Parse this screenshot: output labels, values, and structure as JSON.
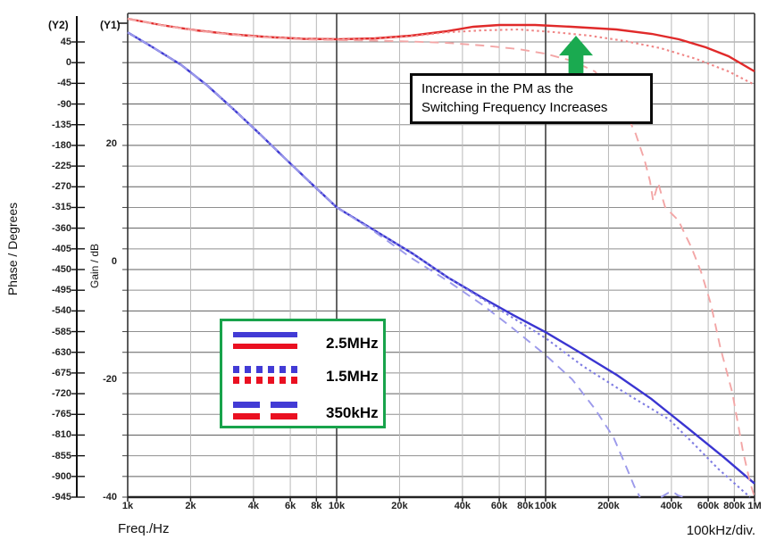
{
  "axes": {
    "phase": {
      "tag": "(Y2)",
      "title": "Phase / Degrees",
      "ticks": [
        45,
        0,
        -45,
        -90,
        -135,
        -180,
        -225,
        -270,
        -315,
        -360,
        -405,
        -450,
        -495,
        -540,
        -585,
        -630,
        -675,
        -720,
        -765,
        -810,
        -855,
        -900,
        -945
      ]
    },
    "gain": {
      "tag": "(Y1)",
      "title": "Gain / dB",
      "ticks": [
        20,
        0,
        -20,
        -40
      ]
    },
    "freq": {
      "title": "Freq./Hz",
      "div_note": "100kHz/div.",
      "tick_labels": [
        "1k",
        "2k",
        "4k",
        "6k",
        "8k",
        "10k",
        "20k",
        "40k",
        "60k",
        "80k",
        "100k",
        "200k",
        "400k",
        "600k",
        "800k",
        "1M"
      ],
      "tick_values": [
        1000,
        2000,
        4000,
        6000,
        8000,
        10000,
        20000,
        40000,
        60000,
        80000,
        100000,
        200000,
        400000,
        600000,
        800000,
        1000000
      ]
    }
  },
  "legend": {
    "items": [
      {
        "label": "2.5MHz",
        "style": "solid"
      },
      {
        "label": "1.5MHz",
        "style": "dotted"
      },
      {
        "label": "350kHz",
        "style": "dashed"
      }
    ],
    "blue": "#423bd5",
    "red": "#ea1021",
    "border_color": "#18a34b"
  },
  "annotation": {
    "line1": "Increase in the PM as the",
    "line2": "Switching Frequency Increases",
    "arrow_color": "#1aaa50"
  },
  "chart_data": {
    "type": "line",
    "title": "",
    "xlabel": "Freq./Hz",
    "x_scale": "log",
    "x_range": [
      1000,
      1000000
    ],
    "y_axes": {
      "gain_db": {
        "label": "Gain / dB",
        "range": [
          -40,
          42
        ]
      },
      "phase_deg": {
        "label": "Phase / Degrees",
        "range": [
          -945,
          107
        ]
      }
    },
    "grid": true,
    "legend_position": "center-left",
    "series": [
      {
        "name": "2.5MHz",
        "measure": "gain",
        "axis": "gain_db",
        "style": "solid",
        "color": "#3a35d1",
        "points": [
          [
            1000,
            38.9
          ],
          [
            1300,
            36.5
          ],
          [
            1800,
            33.4
          ],
          [
            2400,
            29.9
          ],
          [
            3200,
            25.9
          ],
          [
            4300,
            21.6
          ],
          [
            5700,
            17.4
          ],
          [
            7700,
            13.0
          ],
          [
            10000,
            9.2
          ],
          [
            15000,
            5.4
          ],
          [
            23000,
            1.4
          ],
          [
            34000,
            -2.7
          ],
          [
            50000,
            -6.2
          ],
          [
            70000,
            -9.1
          ],
          [
            100000,
            -12.0
          ],
          [
            150000,
            -15.7
          ],
          [
            220000,
            -19.3
          ],
          [
            320000,
            -23.3
          ],
          [
            480000,
            -28.3
          ],
          [
            710000,
            -33.2
          ],
          [
            1000000,
            -37.7
          ]
        ]
      },
      {
        "name": "1.5MHz",
        "measure": "gain",
        "axis": "gain_db",
        "style": "dotted",
        "color": "#7e7ce2",
        "points": [
          [
            1000,
            38.9
          ],
          [
            1300,
            36.5
          ],
          [
            1800,
            33.4
          ],
          [
            2400,
            29.9
          ],
          [
            3200,
            25.9
          ],
          [
            4300,
            21.6
          ],
          [
            5700,
            17.4
          ],
          [
            7700,
            13.0
          ],
          [
            10000,
            9.2
          ],
          [
            15000,
            5.4
          ],
          [
            23000,
            1.4
          ],
          [
            34000,
            -2.7
          ],
          [
            50000,
            -6.4
          ],
          [
            70000,
            -9.6
          ],
          [
            100000,
            -13.0
          ],
          [
            150000,
            -17.7
          ],
          [
            240000,
            -22.3
          ],
          [
            390000,
            -26.8
          ],
          [
            500000,
            -30.6
          ],
          [
            670000,
            -35.2
          ],
          [
            950000,
            -40.8
          ]
        ]
      },
      {
        "name": "350kHz",
        "measure": "gain",
        "axis": "gain_db",
        "style": "dashed",
        "color": "#9c9aeb",
        "points": [
          [
            1000,
            38.9
          ],
          [
            1300,
            36.5
          ],
          [
            1800,
            33.4
          ],
          [
            2400,
            29.9
          ],
          [
            3200,
            25.9
          ],
          [
            4300,
            21.6
          ],
          [
            5700,
            17.4
          ],
          [
            7700,
            13.0
          ],
          [
            10000,
            9.2
          ],
          [
            15000,
            5.2
          ],
          [
            23000,
            0.5
          ],
          [
            34000,
            -3.3
          ],
          [
            50000,
            -7.4
          ],
          [
            70000,
            -11.4
          ],
          [
            100000,
            -15.9
          ],
          [
            134000,
            -20.0
          ],
          [
            172000,
            -25.0
          ],
          [
            211000,
            -29.8
          ],
          [
            240000,
            -34.4
          ],
          [
            266000,
            -38.2
          ],
          [
            283000,
            -40.6
          ],
          null,
          [
            357000,
            -40.6
          ],
          [
            385000,
            -39.3
          ],
          [
            407000,
            -39.1
          ],
          [
            430000,
            -39.7
          ],
          [
            460000,
            -40.6
          ]
        ]
      },
      {
        "name": "2.5MHz",
        "measure": "phase",
        "axis": "phase_deg",
        "style": "solid",
        "color": "#e02a2a",
        "points": [
          [
            1000,
            95.5
          ],
          [
            1440,
            81.9
          ],
          [
            2130,
            70.2
          ],
          [
            3160,
            61.5
          ],
          [
            4680,
            55.7
          ],
          [
            6900,
            51.8
          ],
          [
            10300,
            50.8
          ],
          [
            15300,
            52.8
          ],
          [
            22600,
            58.6
          ],
          [
            33600,
            68.3
          ],
          [
            45000,
            78.0
          ],
          [
            60000,
            81.9
          ],
          [
            89000,
            81.9
          ],
          [
            133000,
            78.0
          ],
          [
            218000,
            72.2
          ],
          [
            323000,
            62.5
          ],
          [
            434000,
            50.8
          ],
          [
            584000,
            33.3
          ],
          [
            750000,
            13.9
          ],
          [
            1000000,
            -19.1
          ]
        ]
      },
      {
        "name": "1.5MHz",
        "measure": "phase",
        "axis": "phase_deg",
        "style": "dotted",
        "color": "#f08686",
        "points": [
          [
            1000,
            95.5
          ],
          [
            1440,
            81.9
          ],
          [
            2130,
            70.2
          ],
          [
            3160,
            61.5
          ],
          [
            4680,
            55.7
          ],
          [
            6900,
            51.8
          ],
          [
            10300,
            50.4
          ],
          [
            15300,
            52.0
          ],
          [
            22600,
            57.5
          ],
          [
            33600,
            66.0
          ],
          [
            50000,
            70.2
          ],
          [
            74000,
            72.2
          ],
          [
            110000,
            66.3
          ],
          [
            163000,
            58.6
          ],
          [
            240000,
            46.9
          ],
          [
            356000,
            31.4
          ],
          [
            525000,
            8.1
          ],
          [
            750000,
            -19.1
          ],
          [
            1000000,
            -48.2
          ]
        ]
      },
      {
        "name": "350kHz",
        "measure": "phase",
        "axis": "phase_deg",
        "style": "dashed",
        "color": "#f3a6a6",
        "points": [
          [
            1000,
            95.5
          ],
          [
            1440,
            81.5
          ],
          [
            2130,
            69.5
          ],
          [
            3160,
            60.5
          ],
          [
            4680,
            54.5
          ],
          [
            6900,
            50.5
          ],
          [
            10300,
            48.9
          ],
          [
            15300,
            48.0
          ],
          [
            22600,
            46.0
          ],
          [
            33600,
            43.1
          ],
          [
            50000,
            37.2
          ],
          [
            74000,
            29.5
          ],
          [
            99000,
            19.8
          ],
          [
            133000,
            4.2
          ],
          [
            172000,
            -19.1
          ],
          [
            211000,
            -67.6
          ],
          [
            240000,
            -106.4
          ],
          [
            270000,
            -155.0
          ],
          [
            298000,
            -213.2
          ],
          [
            316000,
            -257.8
          ],
          [
            327000,
            -300.5
          ],
          [
            346000,
            -261.7
          ],
          [
            360000,
            -290.0
          ],
          [
            373000,
            -314.1
          ],
          [
            432000,
            -343.2
          ],
          [
            500000,
            -403.4
          ],
          [
            555000,
            -455.8
          ],
          [
            617000,
            -523.7
          ],
          [
            687000,
            -620.8
          ],
          [
            783000,
            -717.8
          ],
          [
            879000,
            -844.0
          ],
          [
            950000,
            -912.0
          ],
          [
            1000000,
            -954.7
          ]
        ]
      }
    ]
  }
}
